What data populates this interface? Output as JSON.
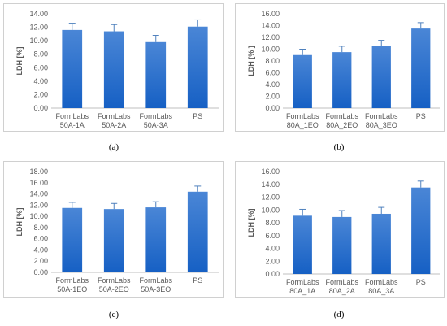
{
  "chart_data": [
    {
      "type": "bar",
      "panel": "(a)",
      "ylabel": "LDH [%]",
      "categories": [
        [
          "FormLabs",
          "50A-1A"
        ],
        [
          "FormLabs",
          "50A-2A"
        ],
        [
          "FormLabs",
          "50A-3A"
        ],
        [
          "PS"
        ]
      ],
      "values": [
        11.6,
        11.4,
        9.8,
        12.1
      ],
      "errors": [
        1.0,
        1.0,
        1.0,
        1.0
      ],
      "yticks": [
        "0.00",
        "2.00",
        "4.00",
        "6.00",
        "8.00",
        "10.00",
        "12.00",
        "14.00"
      ],
      "ylim": [
        0,
        14
      ],
      "grid": false
    },
    {
      "type": "bar",
      "panel": "(b)",
      "ylabel": "LDH [% ]",
      "categories": [
        [
          "FormLabs",
          "80A_1EO"
        ],
        [
          "FormLabs",
          "80A_2EO"
        ],
        [
          "FormLabs",
          "80A_3EO"
        ],
        [
          "PS"
        ]
      ],
      "values": [
        9.0,
        9.5,
        10.5,
        13.5
      ],
      "errors": [
        1.0,
        1.0,
        1.0,
        1.0
      ],
      "yticks": [
        "0.00",
        "2.00",
        "4.00",
        "6.00",
        "8.00",
        "10.00",
        "12.00",
        "14.00",
        "16.00"
      ],
      "ylim": [
        0,
        16
      ],
      "grid": false
    },
    {
      "type": "bar",
      "panel": "(c)",
      "ylabel": "LDH [%]",
      "categories": [
        [
          "FormLabs",
          "50A-1EO"
        ],
        [
          "FormLabs",
          "50A-2EO"
        ],
        [
          "FormLabs",
          "50A-3EO"
        ],
        [
          "PS"
        ]
      ],
      "values": [
        11.5,
        11.3,
        11.6,
        14.4
      ],
      "errors": [
        1.0,
        1.0,
        1.0,
        1.0
      ],
      "yticks": [
        "0.00",
        "2.00",
        "4.00",
        "6.00",
        "8.00",
        "10.00",
        "12.00",
        "14.00",
        "16.00",
        "18.00"
      ],
      "ylim": [
        0,
        18
      ],
      "grid": false
    },
    {
      "type": "bar",
      "panel": "(d)",
      "ylabel": "LDH [%]",
      "categories": [
        [
          "FormLabs",
          "80A_1A"
        ],
        [
          "FormLabs",
          "80A_2A"
        ],
        [
          "FormLabs",
          "80A_3A"
        ],
        [
          "PS"
        ]
      ],
      "values": [
        9.1,
        8.9,
        9.4,
        13.5
      ],
      "errors": [
        1.0,
        1.0,
        1.0,
        1.0
      ],
      "yticks": [
        "0.00",
        "2.00",
        "4.00",
        "6.00",
        "8.00",
        "10.00",
        "12.00",
        "14.00",
        "16.00"
      ],
      "ylim": [
        0,
        16
      ],
      "grid": false
    }
  ],
  "colors": {
    "bar_top": "#4a86d6",
    "bar_bottom": "#1660c4",
    "axis": "#bfbfbf",
    "text": "#595959",
    "error": "#4f81bd"
  }
}
